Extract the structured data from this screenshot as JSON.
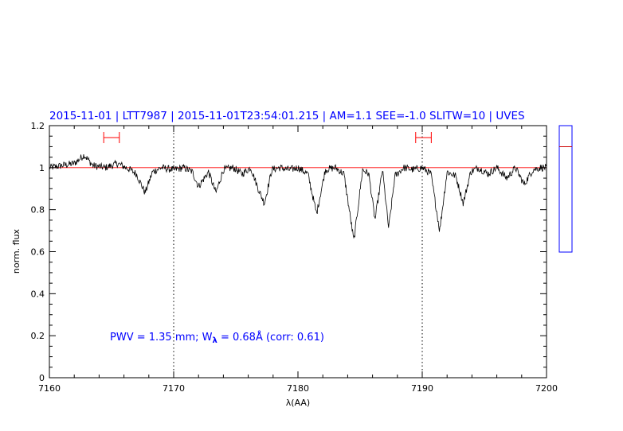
{
  "chart_data": {
    "type": "line",
    "title": "2015-11-01 | LTT7987 | 2015-11-01T23:54:01.215 | AM=1.1 SEE=-1.0 SLITW=10 | UVES",
    "xlabel": "λ(AA)",
    "ylabel": "norm. flux",
    "xlim": [
      7160,
      7200
    ],
    "ylim": [
      0,
      1.2
    ],
    "x_ticks": [
      "7160",
      "7170",
      "7180",
      "7190",
      "7200"
    ],
    "y_ticks": [
      "0",
      "0.2",
      "0.4",
      "0.6",
      "0.8",
      "1",
      "1.2"
    ],
    "continuum_level": 1.0,
    "dotted_verticals": [
      7170,
      7190
    ],
    "reference_intervals": [
      [
        7164.5,
        7165.5
      ],
      [
        7189.6,
        7190.6
      ]
    ],
    "annotation": {
      "pwv_prefix": "PWV = 1.35 mm; W",
      "w_subscript": "λ",
      "w_suffix": " = 0.68Å (corr: 0.61)"
    },
    "series": [
      {
        "values_x": [
          7160,
          7161,
          7162,
          7162.8,
          7163.5,
          7164.5,
          7165.5,
          7166.5,
          7167,
          7167.7,
          7168.3,
          7169,
          7170,
          7170.8,
          7171.5,
          7172,
          7172.8,
          7173.4,
          7174,
          7174.8,
          7175.5,
          7176.2,
          7176.8,
          7177.3,
          7177.9,
          7178.5,
          7179.3,
          7180,
          7180.8,
          7181.5,
          7182.2,
          7183,
          7183.7,
          7184.5,
          7185.2,
          7185.7,
          7186.2,
          7186.8,
          7187.3,
          7187.8,
          7188.5,
          7189.3,
          7190,
          7190.7,
          7191.4,
          7192,
          7192.7,
          7193.3,
          7193.9,
          7194.5,
          7195.3,
          7196,
          7196.8,
          7197.5,
          7198.2,
          7198.9,
          7199.5,
          7200
        ],
        "values_y": [
          1.0,
          1.01,
          1.02,
          1.06,
          1.01,
          1.0,
          1.02,
          0.99,
          0.97,
          0.88,
          0.98,
          1.0,
          0.99,
          1.0,
          0.98,
          0.91,
          0.98,
          0.88,
          0.99,
          1.0,
          0.97,
          1.0,
          0.9,
          0.83,
          0.99,
          1.0,
          0.99,
          1.0,
          0.97,
          0.78,
          0.99,
          1.0,
          0.97,
          0.65,
          0.99,
          0.97,
          0.75,
          0.99,
          0.71,
          0.96,
          1.0,
          0.99,
          1.0,
          0.97,
          0.7,
          0.98,
          0.96,
          0.83,
          0.98,
          1.0,
          0.97,
          1.0,
          0.95,
          1.0,
          0.92,
          0.99,
          1.0,
          1.0
        ]
      }
    ],
    "colors": {
      "title": "#0000ff",
      "spectrum": "#000000",
      "continuum": "#ff0000",
      "reference_markers": "#ff0000",
      "annotation": "#0000ff",
      "side_panel_border": "#0000ff",
      "side_panel_mark": "#cc0000"
    },
    "side_panel": {
      "ylim": [
        0,
        1.2
      ],
      "ticks": [],
      "marker_level": 1.0
    }
  }
}
